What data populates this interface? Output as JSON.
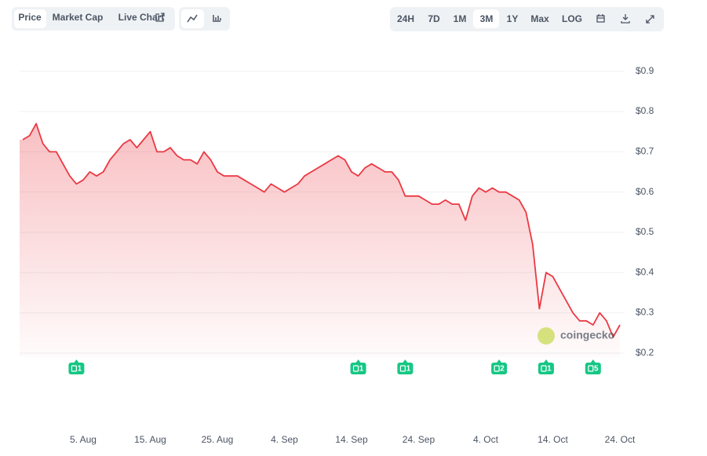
{
  "controls": {
    "view_tabs": [
      "Price",
      "Market Cap",
      "Live Chart"
    ],
    "ranges": [
      "24H",
      "7D",
      "1M",
      "3M",
      "1Y",
      "Max",
      "LOG"
    ],
    "active_view": "Price",
    "active_range": "3M"
  },
  "watermark": "coingecko",
  "chart_data": {
    "type": "line",
    "color": "#ea3943",
    "categories": [
      null,
      null,
      null,
      null,
      null,
      null,
      null,
      null,
      null,
      "5. Aug",
      null,
      null,
      null,
      null,
      null,
      null,
      null,
      null,
      null,
      "15. Aug",
      null,
      null,
      null,
      null,
      null,
      null,
      null,
      null,
      null,
      "25. Aug",
      null,
      null,
      null,
      null,
      null,
      null,
      null,
      null,
      null,
      "4. Sep",
      null,
      null,
      null,
      null,
      null,
      null,
      null,
      null,
      null,
      "14. Sep",
      null,
      null,
      null,
      null,
      null,
      null,
      null,
      null,
      null,
      "24. Sep",
      null,
      null,
      null,
      null,
      null,
      null,
      null,
      null,
      null,
      "4. Oct",
      null,
      null,
      null,
      null,
      null,
      null,
      null,
      null,
      null,
      "14. Oct",
      null,
      null,
      null,
      null,
      null,
      null,
      null,
      null,
      null,
      "24. Oct"
    ],
    "values": [
      0.73,
      0.74,
      0.77,
      0.72,
      0.7,
      0.7,
      0.67,
      0.64,
      0.62,
      0.63,
      0.65,
      0.64,
      0.65,
      0.68,
      0.7,
      0.72,
      0.73,
      0.71,
      0.73,
      0.75,
      0.7,
      0.7,
      0.71,
      0.69,
      0.68,
      0.68,
      0.67,
      0.7,
      0.68,
      0.65,
      0.64,
      0.64,
      0.64,
      0.63,
      0.62,
      0.61,
      0.6,
      0.62,
      0.61,
      0.6,
      0.61,
      0.62,
      0.64,
      0.65,
      0.66,
      0.67,
      0.68,
      0.69,
      0.68,
      0.65,
      0.64,
      0.66,
      0.67,
      0.66,
      0.65,
      0.65,
      0.63,
      0.59,
      0.59,
      0.59,
      0.58,
      0.57,
      0.57,
      0.58,
      0.57,
      0.57,
      0.53,
      0.59,
      0.61,
      0.6,
      0.61,
      0.6,
      0.6,
      0.59,
      0.58,
      0.55,
      0.47,
      0.31,
      0.4,
      0.39,
      0.36,
      0.33,
      0.3,
      0.28,
      0.28,
      0.27,
      0.3,
      0.28,
      0.24,
      0.27
    ],
    "ylim": [
      0.19,
      0.96
    ],
    "yticks": [
      {
        "value": 0.2,
        "label": "$0.2"
      },
      {
        "value": 0.3,
        "label": "$0.3"
      },
      {
        "value": 0.4,
        "label": "$0.4"
      },
      {
        "value": 0.5,
        "label": "$0.5"
      },
      {
        "value": 0.6,
        "label": "$0.6"
      },
      {
        "value": 0.7,
        "label": "$0.7"
      },
      {
        "value": 0.8,
        "label": "$0.8"
      },
      {
        "value": 0.9,
        "label": "$0.9"
      }
    ],
    "grid": true,
    "events": {
      "positions": [
        8,
        50,
        57,
        71,
        78,
        85
      ],
      "counts": [
        1,
        1,
        1,
        2,
        1,
        5
      ]
    }
  }
}
